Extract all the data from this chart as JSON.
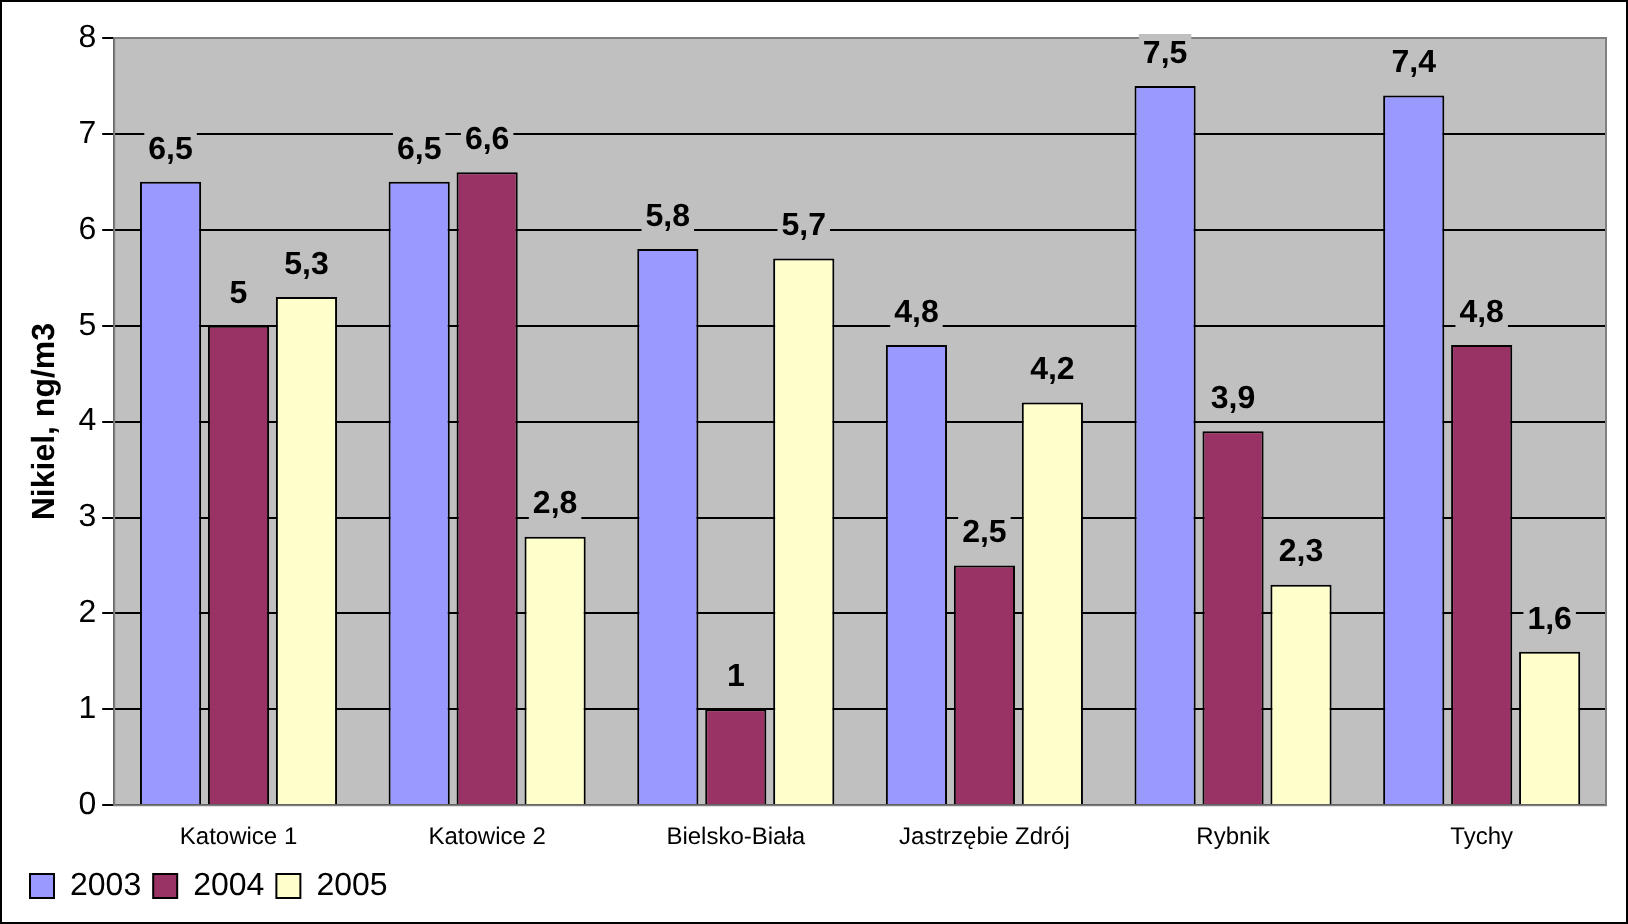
{
  "chart_data": {
    "type": "bar",
    "ylabel": "Nikiel, ng/m3",
    "categories": [
      "Katowice 1",
      "Katowice 2",
      "Bielsko-Biała",
      "Jastrzębie Zdrój",
      "Rybnik",
      "Tychy"
    ],
    "series": [
      {
        "name": "2003",
        "color": "#9999ff",
        "values": [
          6.5,
          6.5,
          5.8,
          4.8,
          7.5,
          7.4
        ],
        "value_labels": [
          "6,5",
          "6,5",
          "5,8",
          "4,8",
          "7,5",
          "7,4"
        ]
      },
      {
        "name": "2004",
        "color": "#993366",
        "values": [
          5,
          6.6,
          1,
          2.5,
          3.9,
          4.8
        ],
        "value_labels": [
          "5",
          "6,6",
          "1",
          "2,5",
          "3,9",
          "4,8"
        ]
      },
      {
        "name": "2005",
        "color": "#ffffcc",
        "values": [
          5.3,
          2.8,
          5.7,
          4.2,
          2.3,
          1.6
        ],
        "value_labels": [
          "5,3",
          "2,8",
          "5,7",
          "4,2",
          "2,3",
          "1,6"
        ]
      }
    ],
    "ylim": [
      0,
      8
    ],
    "yticks": [
      0,
      1,
      2,
      3,
      4,
      5,
      6,
      7,
      8
    ],
    "grid": "y",
    "legend": "bottom left"
  }
}
